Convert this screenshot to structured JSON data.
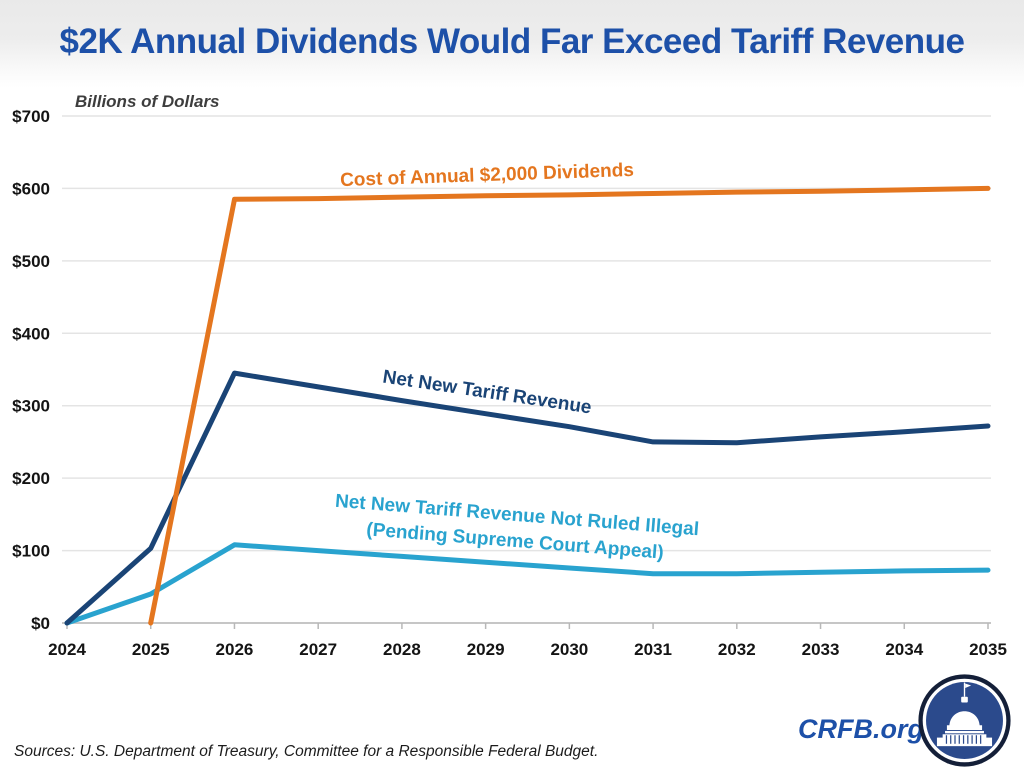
{
  "title": "$2K Annual Dividends Would Far Exceed Tariff Revenue",
  "y_axis_title": "Billions of Dollars",
  "source_note": "Sources: U.S. Department of Treasury, Committee for a Responsible Federal Budget.",
  "branding": {
    "site": "CRFB.org",
    "logo_icon": "capitol-icon"
  },
  "colors": {
    "title_blue": "#1d50a8",
    "orange": "#e4761f",
    "navy": "#1a4476",
    "light_blue": "#29a3cf",
    "gridline": "#e4e4e4",
    "axis_line": "#c6c6c6",
    "tick_text": "#141414",
    "logo_inner_blue": "#2b4a8c",
    "logo_outer_navy": "#141f38"
  },
  "annotations": {
    "orange_label": "Cost of Annual $2,000 Dividends",
    "navy_label": "Net New Tariff Revenue",
    "lblue_label_line1": "Net New Tariff Revenue Not Ruled Illegal",
    "lblue_label_line2": "(Pending Supreme Court Appeal)"
  },
  "chart_data": {
    "type": "line",
    "xlabel": "",
    "ylabel": "Billions of Dollars",
    "xlim": [
      2024,
      2035
    ],
    "ylim": [
      0,
      700
    ],
    "grid": true,
    "legend_position": "inline-labels",
    "x_ticks": [
      2024,
      2025,
      2026,
      2027,
      2028,
      2029,
      2030,
      2031,
      2032,
      2033,
      2034,
      2035
    ],
    "x_tick_labels": [
      "2024",
      "2025",
      "2026",
      "2027",
      "2028",
      "2029",
      "2030",
      "2031",
      "2032",
      "2033",
      "2034",
      "2035"
    ],
    "y_ticks": [
      0,
      100,
      200,
      300,
      400,
      500,
      600,
      700
    ],
    "y_tick_labels": [
      "$0",
      "$100",
      "$200",
      "$300",
      "$400",
      "$500",
      "$600",
      "$700"
    ],
    "series": [
      {
        "name": "Net New Tariff Revenue Not Ruled Illegal (Pending Supreme Court Appeal)",
        "color": "#29a3cf",
        "x": [
          2024,
          2025,
          2026,
          2027,
          2028,
          2029,
          2030,
          2031,
          2032,
          2033,
          2034,
          2035
        ],
        "values": [
          0,
          40,
          108,
          100,
          92,
          84,
          76,
          68,
          68,
          70,
          72,
          73
        ]
      },
      {
        "name": "Net New Tariff Revenue",
        "color": "#1a4476",
        "x": [
          2024,
          2025,
          2026,
          2027,
          2028,
          2029,
          2030,
          2031,
          2032,
          2033,
          2034,
          2035
        ],
        "values": [
          0,
          103,
          345,
          326,
          307,
          289,
          271,
          250,
          249,
          257,
          264,
          272
        ]
      },
      {
        "name": "Cost of Annual $2,000 Dividends",
        "color": "#e4761f",
        "x": [
          2025,
          2026,
          2027,
          2028,
          2029,
          2030,
          2031,
          2032,
          2033,
          2034,
          2035
        ],
        "values": [
          0,
          585,
          586,
          588,
          590,
          591,
          593,
          595,
          596,
          598,
          600
        ]
      }
    ]
  }
}
